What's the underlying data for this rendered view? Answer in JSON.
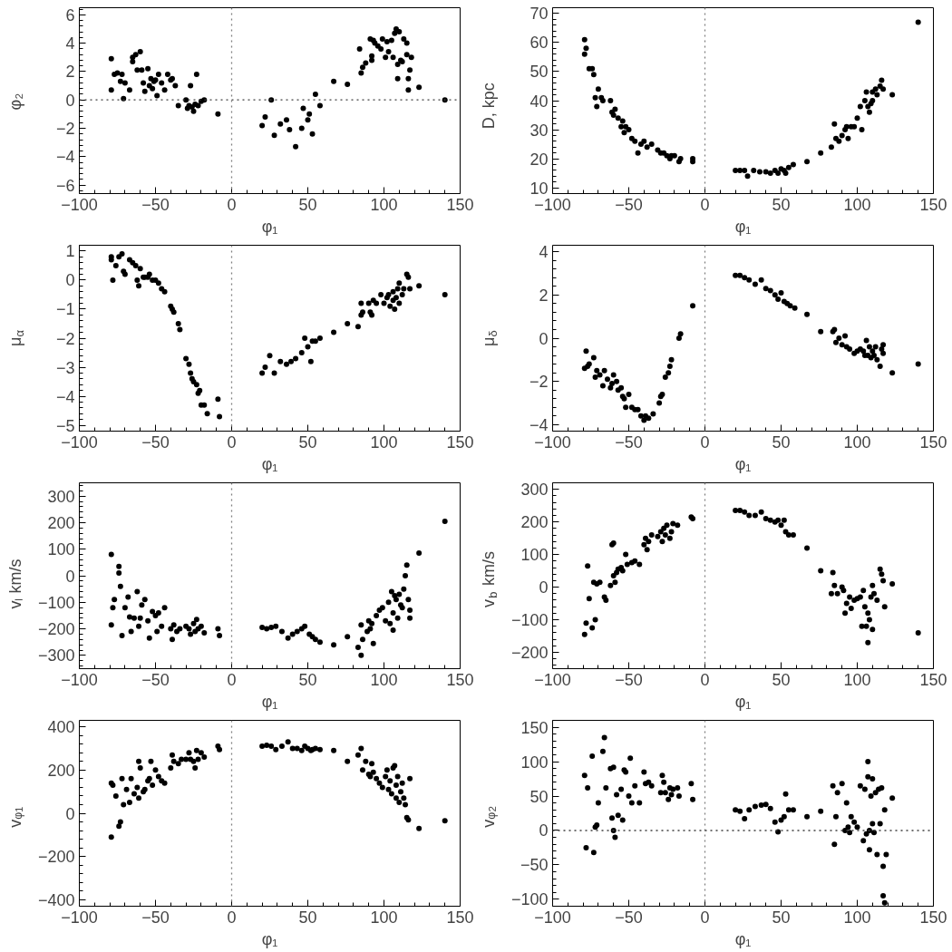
{
  "chart_data": [
    {
      "type": "scatter",
      "xlabel": "φ₁",
      "ylabel": "φ₂",
      "color": "#000000",
      "marker": "circle",
      "xlim": [
        -100,
        150
      ],
      "xticks": [
        -100,
        -50,
        0,
        50,
        100,
        150
      ],
      "ylim": [
        -6.6,
        6.5
      ],
      "yticks": [
        -6,
        -4,
        -2,
        0,
        2,
        4,
        6
      ],
      "ref_lines": [
        {
          "axis": "x",
          "value": 0,
          "color": "#808080",
          "line_style": "dotted"
        },
        {
          "axis": "y",
          "value": 0,
          "color": "#404040",
          "line_style": "dotted"
        }
      ],
      "x": [
        -79,
        -79,
        -77,
        -75,
        -73,
        -72,
        -71,
        -70,
        -67,
        -65,
        -65,
        -63,
        -62,
        -60,
        -59,
        -58,
        -57,
        -55,
        -54,
        -53,
        -52,
        -51,
        -50,
        -49,
        -48,
        -46,
        -44,
        -42,
        -40,
        -39,
        -37,
        -35,
        -30,
        -29,
        -28,
        -27,
        -26,
        -25,
        -24,
        -23,
        -22,
        -20,
        -18,
        -9,
        20,
        22,
        26,
        28,
        32,
        36,
        38,
        42,
        46,
        47,
        50,
        51,
        53,
        55,
        58,
        67,
        76,
        84,
        85,
        86,
        88,
        91,
        92,
        92,
        93,
        94,
        96,
        98,
        99,
        101,
        102,
        103,
        105,
        106,
        107,
        108,
        109,
        109,
        110,
        111,
        112,
        113,
        115,
        115,
        116,
        116,
        117,
        118,
        123,
        140
      ],
      "values": [
        2.9,
        0.7,
        1.8,
        1.9,
        1.3,
        1.8,
        0.1,
        1.2,
        0.7,
        3.0,
        2.7,
        3.2,
        2.1,
        3.4,
        2.1,
        1.2,
        0.6,
        2.2,
        1.0,
        1.5,
        0.8,
        1.3,
        1.4,
        0.3,
        1.8,
        1.2,
        0.7,
        1.8,
        1.4,
        1.5,
        1.0,
        -0.4,
        0.0,
        -0.6,
        -0.4,
        1.0,
        -0.5,
        -0.8,
        -0.3,
        1.8,
        -0.4,
        -0.1,
        0.0,
        -1.0,
        -1.8,
        -1.2,
        0.0,
        -2.5,
        -1.7,
        -1.4,
        -2.1,
        -3.3,
        -2.0,
        -0.6,
        -1.4,
        -1.0,
        -2.4,
        0.4,
        -0.4,
        1.3,
        1.1,
        3.6,
        1.9,
        2.3,
        2.6,
        4.3,
        3.1,
        2.8,
        4.2,
        4.0,
        3.8,
        3.6,
        4.3,
        3.0,
        4.1,
        3.4,
        4.2,
        3.0,
        4.7,
        5.0,
        2.5,
        1.5,
        4.8,
        2.8,
        2.7,
        4.3,
        4.0,
        3.2,
        1.5,
        0.7,
        2.1,
        3.0,
        0.9,
        0.0
      ]
    },
    {
      "type": "scatter",
      "xlabel": "φ₁",
      "ylabel": "D, kpc",
      "color": "#000000",
      "marker": "circle",
      "xlim": [
        -100,
        150
      ],
      "xticks": [
        -100,
        -50,
        0,
        50,
        100,
        150
      ],
      "ylim": [
        8,
        72
      ],
      "yticks": [
        10,
        20,
        30,
        40,
        50,
        60,
        70
      ],
      "ref_lines": [
        {
          "axis": "x",
          "value": 0,
          "color": "#808080",
          "line_style": "dotted"
        }
      ],
      "x": [
        -79,
        -79,
        -78,
        -76,
        -74,
        -73,
        -72,
        -71,
        -70,
        -68,
        -67,
        -62,
        -61,
        -60,
        -59,
        -57,
        -55,
        -54,
        -53,
        -52,
        -50,
        -48,
        -46,
        -44,
        -42,
        -40,
        -38,
        -35,
        -31,
        -29,
        -27,
        -25,
        -23,
        -22,
        -20,
        -17,
        -16,
        -8,
        -8,
        20,
        23,
        26,
        28,
        32,
        36,
        40,
        43,
        46,
        48,
        50,
        52,
        53,
        55,
        58,
        67,
        76,
        83,
        85,
        86,
        88,
        90,
        92,
        93,
        94,
        96,
        98,
        100,
        102,
        103,
        105,
        106,
        107,
        108,
        109,
        110,
        110,
        112,
        113,
        115,
        116,
        117,
        123,
        140
      ],
      "values": [
        61,
        56,
        58,
        51,
        51,
        49,
        41,
        38,
        44,
        41,
        40,
        40,
        36,
        35,
        37,
        34,
        31,
        33,
        29,
        31,
        30,
        27,
        26,
        22,
        25,
        26,
        24,
        25,
        23,
        22,
        22,
        21,
        20,
        21,
        21,
        19,
        20,
        20,
        19,
        16,
        16,
        16,
        14,
        16,
        15.5,
        15.5,
        15,
        16,
        15,
        16.5,
        16,
        15,
        17,
        18,
        19,
        22,
        24,
        32,
        27,
        26,
        28,
        30,
        31,
        27,
        31,
        31,
        34,
        38,
        30,
        40,
        43,
        38,
        36,
        39,
        43,
        40,
        44,
        42,
        45,
        47,
        44,
        42,
        67
      ]
    },
    {
      "type": "scatter",
      "xlabel": "φ₁",
      "ylabel": "μ$_{α}$",
      "color": "#000000",
      "marker": "circle",
      "xlim": [
        -100,
        150
      ],
      "xticks": [
        -100,
        -50,
        0,
        50,
        100,
        150
      ],
      "ylim": [
        -5.2,
        1.2
      ],
      "yticks": [
        -5,
        -4,
        -3,
        -2,
        -1,
        0,
        1
      ],
      "ref_lines": [
        {
          "axis": "x",
          "value": 0,
          "color": "#808080",
          "line_style": "dotted"
        }
      ],
      "x": [
        -79,
        -79,
        -78,
        -76,
        -74,
        -72,
        -71,
        -70,
        -67,
        -65,
        -63,
        -62,
        -61,
        -60,
        -58,
        -57,
        -55,
        -54,
        -52,
        -50,
        -48,
        -46,
        -44,
        -40,
        -39,
        -38,
        -35,
        -34,
        -30,
        -28,
        -27,
        -26,
        -25,
        -23,
        -22,
        -21,
        -20,
        -18,
        -16,
        -9,
        -8,
        20,
        22,
        25,
        28,
        32,
        36,
        39,
        42,
        46,
        48,
        50,
        52,
        53,
        55,
        58,
        67,
        76,
        83,
        85,
        85,
        86,
        90,
        91,
        92,
        93,
        95,
        98,
        100,
        102,
        103,
        104,
        106,
        106,
        107,
        108,
        109,
        110,
        110,
        112,
        113,
        115,
        116,
        117,
        123,
        140
      ],
      "values": [
        0.8,
        0.7,
        0.0,
        0.5,
        0.8,
        0.9,
        0.3,
        0.2,
        0.7,
        0.6,
        0.5,
        0.0,
        -0.2,
        0.4,
        0.1,
        0.1,
        0.1,
        0.2,
        0.0,
        0.0,
        -0.1,
        -0.3,
        -0.4,
        -0.9,
        -1.0,
        -1.1,
        -1.5,
        -1.7,
        -2.7,
        -2.9,
        -3.2,
        -3.4,
        -3.5,
        -3.6,
        -3.9,
        -3.8,
        -4.3,
        -4.3,
        -4.6,
        -4.1,
        -4.7,
        -3.2,
        -3.0,
        -2.6,
        -3.2,
        -2.8,
        -2.9,
        -2.8,
        -2.7,
        -2.5,
        -2.0,
        -2.3,
        -2.8,
        -2.1,
        -2.1,
        -2.0,
        -1.8,
        -1.5,
        -1.6,
        -0.8,
        -1.2,
        -1.1,
        -0.8,
        -1.1,
        -1.2,
        -0.7,
        -0.8,
        -0.5,
        -0.8,
        -0.6,
        -0.5,
        -0.9,
        -0.7,
        -0.4,
        -1.0,
        -0.6,
        -0.3,
        -0.8,
        -0.1,
        -0.5,
        -0.3,
        0.2,
        0.1,
        -0.3,
        -0.2,
        -0.5
      ]
    },
    {
      "type": "scatter",
      "xlabel": "φ₁",
      "ylabel": "μ$_{δ}$",
      "color": "#000000",
      "marker": "circle",
      "xlim": [
        -100,
        150
      ],
      "xticks": [
        -100,
        -50,
        0,
        50,
        100,
        150
      ],
      "ylim": [
        -4.3,
        4.3
      ],
      "yticks": [
        -4,
        -2,
        0,
        2,
        4
      ],
      "ref_lines": [
        {
          "axis": "x",
          "value": 0,
          "color": "#808080",
          "line_style": "dotted"
        }
      ],
      "x": [
        -79,
        -78,
        -77,
        -76,
        -73,
        -72,
        -71,
        -69,
        -67,
        -66,
        -64,
        -62,
        -61,
        -60,
        -58,
        -57,
        -55,
        -54,
        -53,
        -52,
        -50,
        -48,
        -46,
        -44,
        -42,
        -40,
        -39,
        -37,
        -34,
        -30,
        -29,
        -28,
        -26,
        -24,
        -23,
        -22,
        -17,
        -16,
        -8,
        20,
        23,
        26,
        29,
        33,
        37,
        40,
        43,
        46,
        48,
        50,
        52,
        54,
        56,
        59,
        67,
        76,
        84,
        85,
        86,
        88,
        90,
        92,
        93,
        95,
        98,
        100,
        102,
        104,
        105,
        106,
        107,
        108,
        109,
        110,
        111,
        112,
        113,
        115,
        116,
        117,
        117,
        123,
        140
      ],
      "values": [
        -1.4,
        -0.6,
        -1.3,
        -1.2,
        -0.9,
        -1.8,
        -1.5,
        -1.7,
        -2.2,
        -1.5,
        -1.9,
        -2.3,
        -2.1,
        -1.7,
        -2.0,
        -2.4,
        -2.3,
        -2.7,
        -2.8,
        -3.2,
        -2.6,
        -3.2,
        -3.3,
        -3.3,
        -3.6,
        -3.8,
        -3.6,
        -3.7,
        -3.5,
        -3.0,
        -2.7,
        -2.6,
        -1.8,
        -1.6,
        -1.3,
        -1.0,
        0.0,
        0.2,
        1.5,
        2.9,
        2.9,
        2.8,
        2.7,
        2.5,
        2.7,
        2.3,
        2.2,
        2.0,
        1.8,
        2.1,
        1.7,
        1.6,
        1.5,
        1.4,
        1.1,
        0.3,
        0.3,
        0.4,
        -0.2,
        0.0,
        -0.3,
        0.1,
        -0.4,
        -0.5,
        -0.7,
        -0.6,
        -0.5,
        -0.6,
        -0.8,
        -0.1,
        -0.8,
        -0.4,
        -0.9,
        -0.6,
        -0.8,
        -0.4,
        -1.0,
        -1.3,
        -0.5,
        -0.7,
        -0.3,
        -1.6,
        -1.2
      ]
    },
    {
      "type": "scatter",
      "xlabel": "φ₁",
      "ylabel": "vₗ km/s",
      "color": "#000000",
      "marker": "circle",
      "xlim": [
        -100,
        150
      ],
      "xticks": [
        -100,
        -50,
        0,
        50,
        100,
        150
      ],
      "ylim": [
        -350,
        350
      ],
      "yticks": [
        -300,
        -200,
        -100,
        0,
        100,
        200,
        300
      ],
      "ref_lines": [
        {
          "axis": "x",
          "value": 0,
          "color": "#808080",
          "line_style": "dotted"
        }
      ],
      "x": [
        -79,
        -79,
        -78,
        -77,
        -74,
        -74,
        -73,
        -72,
        -70,
        -68,
        -67,
        -66,
        -64,
        -62,
        -61,
        -60,
        -59,
        -57,
        -55,
        -54,
        -52,
        -50,
        -49,
        -48,
        -46,
        -44,
        -40,
        -39,
        -38,
        -36,
        -34,
        -30,
        -28,
        -27,
        -25,
        -24,
        -23,
        -22,
        -20,
        -18,
        -9,
        -8,
        20,
        23,
        26,
        29,
        33,
        37,
        40,
        43,
        46,
        48,
        51,
        53,
        55,
        58,
        67,
        76,
        83,
        85,
        85,
        86,
        89,
        90,
        91,
        92,
        93,
        95,
        97,
        99,
        101,
        103,
        104,
        105,
        106,
        106,
        107,
        108,
        109,
        110,
        111,
        112,
        113,
        114,
        115,
        116,
        117,
        117,
        123,
        140
      ],
      "values": [
        80,
        -185,
        -120,
        -90,
        35,
        10,
        -40,
        -225,
        -120,
        -80,
        -155,
        -210,
        -160,
        -60,
        -190,
        -160,
        -110,
        -90,
        -170,
        -235,
        -135,
        -150,
        -210,
        -140,
        -190,
        -120,
        -200,
        -240,
        -185,
        -210,
        -200,
        -190,
        -200,
        -220,
        -180,
        -210,
        -165,
        -200,
        -190,
        -215,
        -200,
        -225,
        -195,
        -200,
        -195,
        -190,
        -210,
        -235,
        -220,
        -210,
        -200,
        -190,
        -220,
        -230,
        -240,
        -250,
        -260,
        -230,
        -270,
        -300,
        -185,
        -240,
        -210,
        -170,
        -200,
        -180,
        -255,
        -150,
        -130,
        -120,
        -170,
        -100,
        -180,
        -60,
        -140,
        -205,
        -75,
        -90,
        -160,
        -70,
        -110,
        -120,
        -50,
        0,
        40,
        -90,
        -130,
        -160,
        85,
        205
      ]
    },
    {
      "type": "scatter",
      "xlabel": "φ₁",
      "ylabel": "v$_{b}$ km/s",
      "color": "#000000",
      "marker": "circle",
      "xlim": [
        -100,
        150
      ],
      "xticks": [
        -100,
        -50,
        0,
        50,
        100,
        150
      ],
      "ylim": [
        -250,
        320
      ],
      "yticks": [
        -200,
        -100,
        0,
        100,
        200,
        300
      ],
      "ref_lines": [
        {
          "axis": "x",
          "value": 0,
          "color": "#808080",
          "line_style": "dotted"
        }
      ],
      "x": [
        -79,
        -78,
        -77,
        -76,
        -74,
        -73,
        -72,
        -71,
        -69,
        -66,
        -65,
        -62,
        -61,
        -60,
        -60,
        -59,
        -58,
        -57,
        -55,
        -54,
        -52,
        -51,
        -48,
        -46,
        -43,
        -40,
        -39,
        -38,
        -37,
        -35,
        -31,
        -29,
        -28,
        -27,
        -26,
        -25,
        -23,
        -22,
        -21,
        -18,
        -9,
        -8,
        20,
        23,
        26,
        29,
        33,
        37,
        40,
        43,
        46,
        48,
        50,
        52,
        53,
        55,
        58,
        67,
        76,
        83,
        84,
        85,
        87,
        90,
        91,
        92,
        93,
        95,
        96,
        98,
        100,
        102,
        103,
        104,
        105,
        106,
        107,
        107,
        108,
        109,
        110,
        110,
        111,
        113,
        115,
        116,
        117,
        118,
        123,
        140
      ],
      "values": [
        -145,
        -110,
        65,
        -35,
        -125,
        15,
        -100,
        10,
        15,
        -30,
        -40,
        5,
        130,
        135,
        35,
        15,
        45,
        55,
        60,
        50,
        100,
        70,
        75,
        80,
        70,
        130,
        150,
        115,
        140,
        160,
        155,
        170,
        140,
        180,
        160,
        190,
        150,
        170,
        195,
        190,
        215,
        210,
        235,
        235,
        230,
        220,
        220,
        230,
        210,
        205,
        200,
        205,
        190,
        205,
        170,
        160,
        160,
        120,
        50,
        -20,
        45,
        5,
        -20,
        0,
        -10,
        -80,
        -50,
        -30,
        -65,
        -40,
        -35,
        -30,
        -120,
        -10,
        -60,
        -120,
        -170,
        -80,
        -100,
        -30,
        -130,
        5,
        -20,
        -40,
        55,
        40,
        20,
        -60,
        10,
        -140
      ]
    },
    {
      "type": "scatter",
      "xlabel": "φ₁",
      "ylabel": "vᵩ₁",
      "color": "#000000",
      "marker": "circle",
      "xlim": [
        -100,
        150
      ],
      "xticks": [
        -100,
        -50,
        0,
        50,
        100,
        150
      ],
      "ylim": [
        -430,
        430
      ],
      "yticks": [
        -400,
        -200,
        0,
        200,
        400
      ],
      "ref_lines": [
        {
          "axis": "x",
          "value": 0,
          "color": "#808080",
          "line_style": "dotted"
        }
      ],
      "x": [
        -79,
        -79,
        -78,
        -76,
        -74,
        -73,
        -72,
        -71,
        -69,
        -67,
        -66,
        -64,
        -62,
        -61,
        -61,
        -60,
        -58,
        -57,
        -55,
        -54,
        -53,
        -52,
        -50,
        -48,
        -46,
        -44,
        -40,
        -39,
        -38,
        -35,
        -33,
        -30,
        -28,
        -27,
        -25,
        -24,
        -23,
        -22,
        -20,
        -18,
        -9,
        -8,
        20,
        23,
        26,
        29,
        33,
        37,
        40,
        43,
        46,
        48,
        50,
        52,
        53,
        55,
        58,
        67,
        76,
        83,
        85,
        86,
        88,
        90,
        91,
        92,
        93,
        95,
        97,
        99,
        101,
        102,
        103,
        104,
        105,
        106,
        107,
        108,
        108,
        109,
        110,
        111,
        112,
        113,
        114,
        115,
        116,
        117,
        123,
        140
      ],
      "values": [
        -110,
        140,
        130,
        80,
        -60,
        -40,
        160,
        40,
        110,
        50,
        160,
        90,
        120,
        240,
        70,
        210,
        100,
        110,
        150,
        160,
        240,
        130,
        200,
        170,
        150,
        140,
        210,
        270,
        240,
        230,
        250,
        250,
        280,
        250,
        240,
        210,
        290,
        250,
        280,
        260,
        310,
        295,
        310,
        315,
        310,
        295,
        310,
        330,
        300,
        300,
        290,
        310,
        300,
        290,
        295,
        300,
        295,
        290,
        240,
        270,
        300,
        200,
        240,
        180,
        170,
        230,
        190,
        160,
        140,
        120,
        170,
        200,
        110,
        150,
        90,
        210,
        220,
        70,
        130,
        170,
        50,
        100,
        140,
        70,
        40,
        -20,
        -30,
        160,
        -70,
        -35
      ]
    },
    {
      "type": "scatter",
      "xlabel": "φ₁",
      "ylabel": "vᵩ₂",
      "color": "#000000",
      "marker": "circle",
      "xlim": [
        -100,
        150
      ],
      "xticks": [
        -100,
        -50,
        0,
        50,
        100,
        150
      ],
      "ylim": [
        -110,
        160
      ],
      "yticks": [
        -100,
        -50,
        0,
        50,
        100,
        150
      ],
      "ref_lines": [
        {
          "axis": "x",
          "value": 0,
          "color": "#808080",
          "line_style": "dotted"
        },
        {
          "axis": "y",
          "value": 0,
          "color": "#404040",
          "line_style": "dotted"
        }
      ],
      "x": [
        -79,
        -78,
        -77,
        -74,
        -73,
        -72,
        -71,
        -70,
        -67,
        -66,
        -65,
        -62,
        -61,
        -60,
        -60,
        -59,
        -58,
        -57,
        -55,
        -54,
        -53,
        -52,
        -50,
        -49,
        -48,
        -46,
        -43,
        -40,
        -39,
        -37,
        -35,
        -29,
        -28,
        -27,
        -26,
        -24,
        -23,
        -22,
        -21,
        -18,
        -17,
        -9,
        -8,
        20,
        23,
        26,
        29,
        33,
        37,
        40,
        43,
        46,
        48,
        50,
        52,
        53,
        55,
        58,
        67,
        76,
        84,
        85,
        86,
        87,
        90,
        92,
        93,
        94,
        95,
        96,
        98,
        100,
        102,
        104,
        105,
        106,
        107,
        107,
        108,
        108,
        109,
        110,
        110,
        111,
        112,
        113,
        114,
        115,
        116,
        117,
        117,
        118,
        118,
        119,
        123
      ],
      "values": [
        80,
        -25,
        62,
        108,
        -32,
        5,
        8,
        40,
        115,
        135,
        62,
        90,
        18,
        92,
        0,
        -10,
        52,
        22,
        60,
        15,
        88,
        85,
        50,
        105,
        40,
        65,
        40,
        85,
        68,
        70,
        65,
        55,
        80,
        70,
        55,
        45,
        62,
        52,
        60,
        62,
        50,
        68,
        45,
        30,
        28,
        17,
        30,
        35,
        37,
        38,
        32,
        12,
        -2,
        15,
        20,
        53,
        30,
        30,
        20,
        28,
        65,
        -20,
        20,
        55,
        68,
        0,
        40,
        5,
        -3,
        20,
        12,
        5,
        65,
        -15,
        60,
        -5,
        78,
        100,
        0,
        -28,
        50,
        75,
        10,
        -3,
        55,
        -35,
        60,
        10,
        62,
        -52,
        -95,
        -105,
        30,
        -35,
        47
      ]
    }
  ]
}
